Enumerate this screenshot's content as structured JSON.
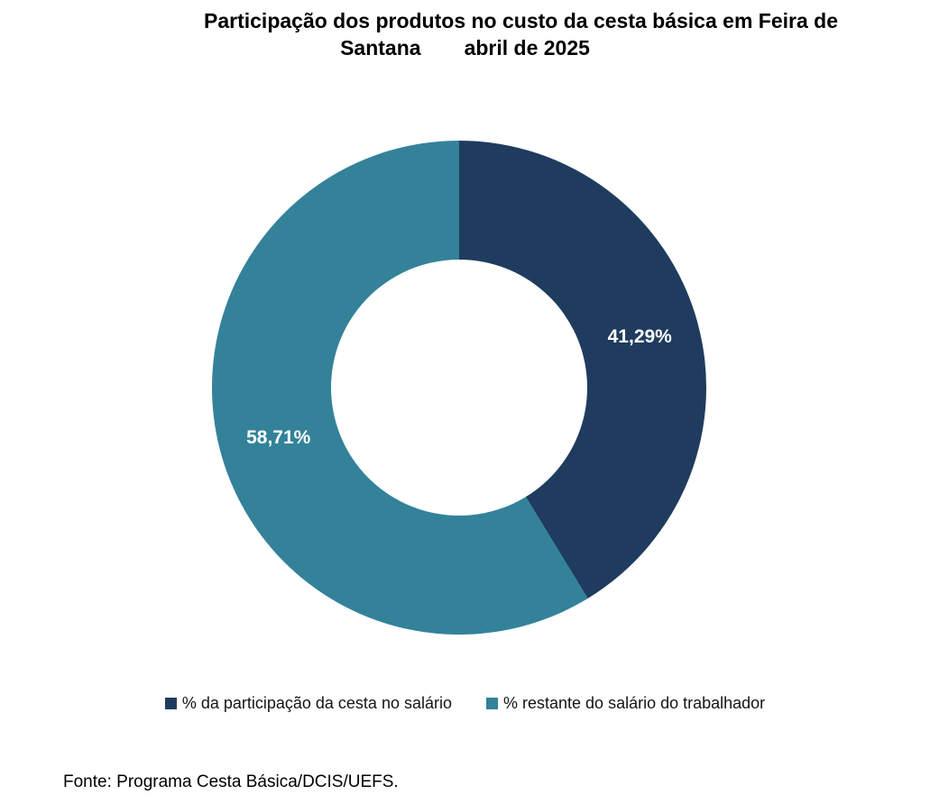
{
  "title": {
    "line1": "Participação dos produtos no custo da cesta básica em Feira de",
    "line2_left": "Santana",
    "line2_right": "abril de 2025"
  },
  "chart_data": {
    "type": "pie",
    "subtype": "donut",
    "title": "Participação dos produtos no custo da cesta básica em Feira de Santana    abril de 2025",
    "labels": [
      "% da participação da cesta no salário",
      "% restante do salário do trabalhador"
    ],
    "values": [
      41.29,
      58.71
    ],
    "value_labels": [
      "41,29%",
      "58,71%"
    ],
    "colors": [
      "#1F3C5E",
      "#33829A"
    ],
    "data_label_color": "#FFFFFF",
    "hole_ratio": 0.52,
    "start_angle_deg": 0,
    "direction": "clockwise",
    "legend_position": "bottom"
  },
  "legend": {
    "items": [
      {
        "label": "% da participação da cesta no salário",
        "color": "#1F3C5E"
      },
      {
        "label": "% restante do salário do trabalhador",
        "color": "#33829A"
      }
    ]
  },
  "footer": {
    "text": "Fonte: Programa Cesta Básica/DCIS/UEFS."
  }
}
